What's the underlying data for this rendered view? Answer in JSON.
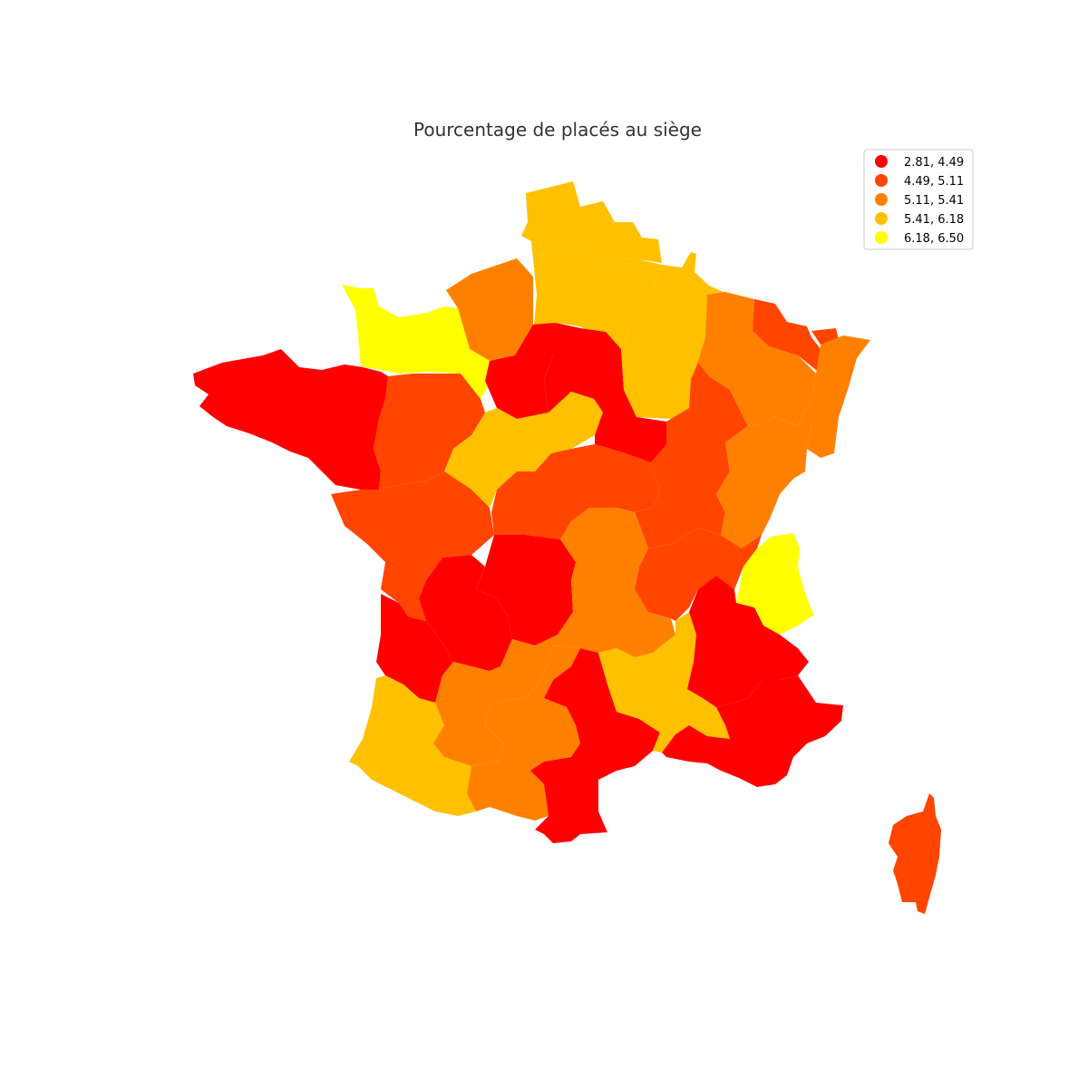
{
  "map": {
    "title": "Pourcentage de placés au siège",
    "legend": {
      "placement": "top-right",
      "classes": [
        {
          "label": "2.81, 4.49",
          "color": "#ff0000"
        },
        {
          "label": "4.49, 5.11",
          "color": "#ff4500"
        },
        {
          "label": "5.11, 5.41",
          "color": "#ff8000"
        },
        {
          "label": "5.41, 6.18",
          "color": "#ffc000"
        },
        {
          "label": "6.18, 6.50",
          "color": "#ffff00"
        }
      ]
    },
    "regions": [
      {
        "id": "nord",
        "class": 3
      },
      {
        "id": "aisne",
        "class": 3
      },
      {
        "id": "somme-oise",
        "class": 2
      },
      {
        "id": "normandie-ouest",
        "class": 4
      },
      {
        "id": "normandie-est",
        "class": 4
      },
      {
        "id": "paris",
        "class": 0
      },
      {
        "id": "marne",
        "class": 0
      },
      {
        "id": "ardennes-champagne",
        "class": 3
      },
      {
        "id": "lorraine",
        "class": 2
      },
      {
        "id": "moselle",
        "class": 1
      },
      {
        "id": "bas-rhin",
        "class": 1
      },
      {
        "id": "haut-rhin",
        "class": 2
      },
      {
        "id": "bretagne",
        "class": 0
      },
      {
        "id": "pays-loire",
        "class": 1
      },
      {
        "id": "loiret-centre",
        "class": 3
      },
      {
        "id": "bourgogne-ouest",
        "class": 1
      },
      {
        "id": "bourgogne-est",
        "class": 1
      },
      {
        "id": "franche-comte",
        "class": 2
      },
      {
        "id": "yonne",
        "class": 0
      },
      {
        "id": "poitou",
        "class": 1
      },
      {
        "id": "limousin",
        "class": 0
      },
      {
        "id": "dordogne",
        "class": 0
      },
      {
        "id": "auvergne",
        "class": 2
      },
      {
        "id": "rhone",
        "class": 1
      },
      {
        "id": "savoie",
        "class": 4
      },
      {
        "id": "gironde",
        "class": 0
      },
      {
        "id": "landes-pau",
        "class": 3
      },
      {
        "id": "toulouse",
        "class": 2
      },
      {
        "id": "agen",
        "class": 2
      },
      {
        "id": "montpellier",
        "class": 0
      },
      {
        "id": "nimes",
        "class": 3
      },
      {
        "id": "grenoble",
        "class": 0
      },
      {
        "id": "aix-provence",
        "class": 0
      },
      {
        "id": "corse",
        "class": 1
      }
    ]
  }
}
